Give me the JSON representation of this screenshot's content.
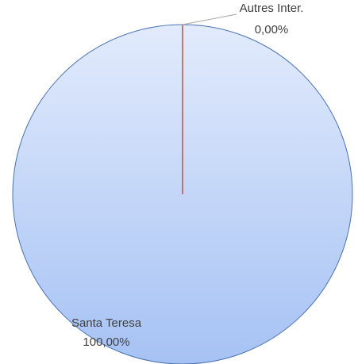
{
  "chart_data": {
    "type": "pie",
    "categories": [
      "Santa Teresa",
      "Autres Inter."
    ],
    "values": [
      100,
      0
    ],
    "value_labels": [
      "100,00%",
      "0,00%"
    ],
    "colors": [
      "#c3d6f8",
      "#c0504d"
    ]
  }
}
